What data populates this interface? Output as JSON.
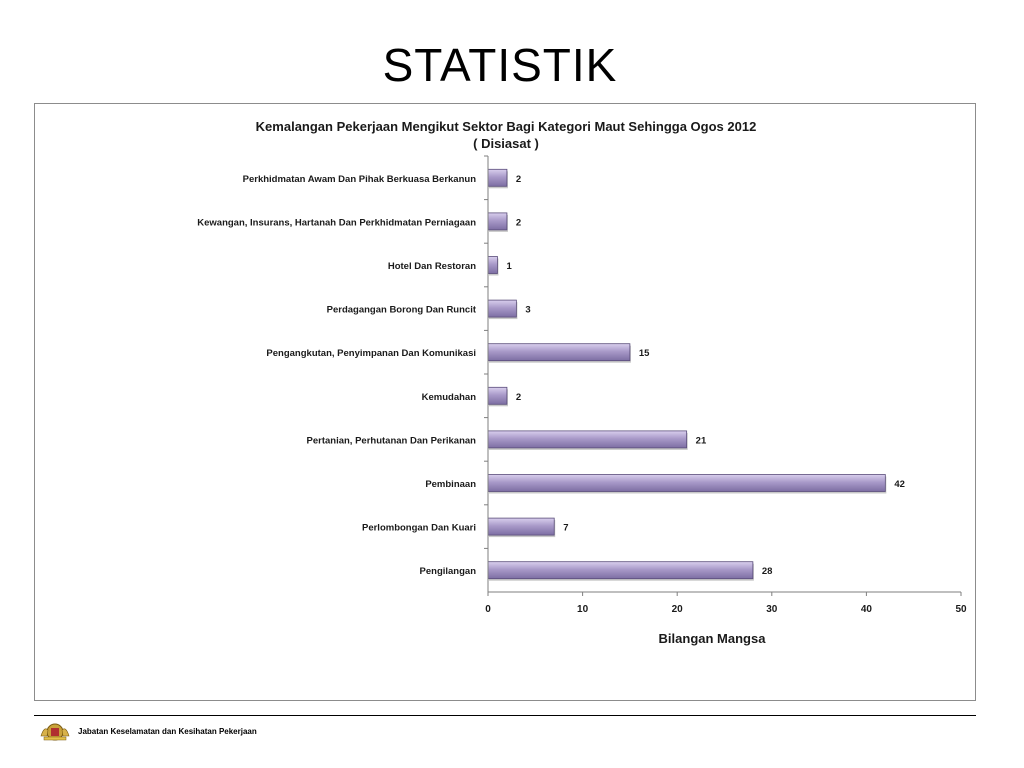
{
  "slide": {
    "title": "STATISTIK",
    "footer_text": "Jabatan Keselamatan dan Kesihatan Pekerjaan",
    "logo_icon": "coat-of-arms-icon"
  },
  "chart_data": {
    "type": "bar",
    "orientation": "horizontal",
    "title": "Kemalangan Pekerjaan Mengikut Sektor Bagi Kategori Maut Sehingga Ogos 2012",
    "subtitle": "( Disiasat )",
    "xlabel": "Bilangan Mangsa",
    "ylabel": "",
    "xlim": [
      0,
      50
    ],
    "xticks": [
      0,
      10,
      20,
      30,
      40,
      50
    ],
    "grid": false,
    "legend": "none",
    "bar_color": "#a696c8",
    "bar_edge_color": "#5a4d7a",
    "categories": [
      "Perkhidmatan Awam Dan Pihak Berkuasa Berkanun",
      "Kewangan, Insurans, Hartanah Dan Perkhidmatan Perniagaan",
      "Hotel Dan Restoran",
      "Perdagangan Borong Dan Runcit",
      "Pengangkutan, Penyimpanan Dan Komunikasi",
      "Kemudahan",
      "Pertanian, Perhutanan Dan Perikanan",
      "Pembinaan",
      "Perlombongan Dan Kuari",
      "Pengilangan"
    ],
    "values": [
      2,
      2,
      1,
      3,
      15,
      2,
      21,
      42,
      7,
      28
    ]
  }
}
